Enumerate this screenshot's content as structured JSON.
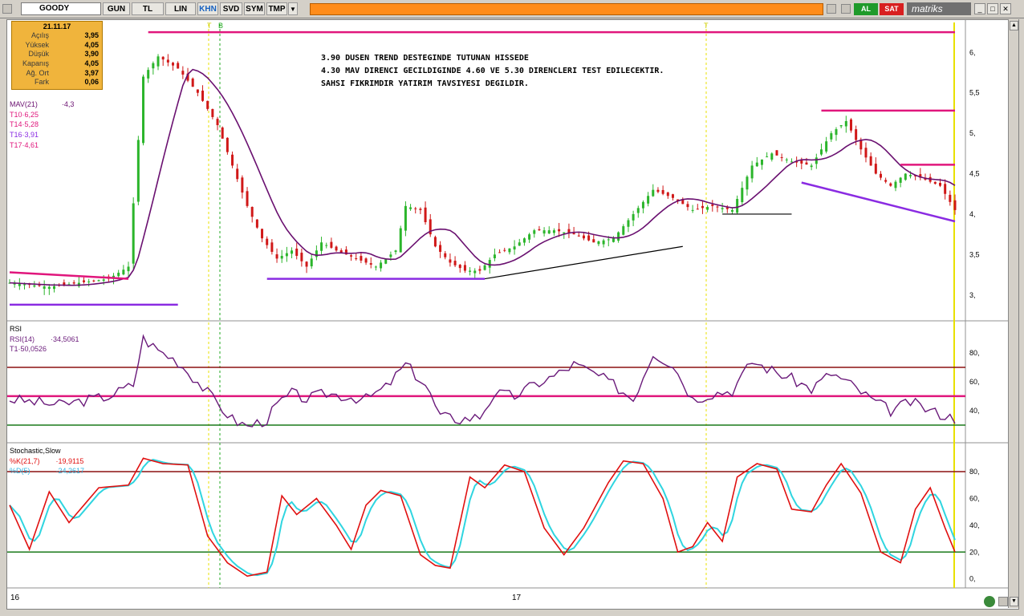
{
  "toolbar": {
    "symbol": "GOODY",
    "buttons": [
      "GUN",
      "TL",
      "LIN",
      "KHN",
      "SVD",
      "SYM",
      "TMP"
    ],
    "active_button": "KHN",
    "buy_label": "AL",
    "sell_label": "SAT",
    "brand": "matriks"
  },
  "info_box": {
    "date": "21.11.17",
    "rows": [
      {
        "label": "Açılış",
        "value": "3,95"
      },
      {
        "label": "Yüksek",
        "value": "4,05"
      },
      {
        "label": "Düşük",
        "value": "3,90"
      },
      {
        "label": "Kapanış",
        "value": "4,05"
      },
      {
        "label": "Ağ. Ort",
        "value": "3,97"
      },
      {
        "label": "Fark",
        "value": "0,06"
      }
    ]
  },
  "price_legend": {
    "mav": "MAV(21)",
    "mav_value": "·4,3",
    "t10": "T10·6,25",
    "t14": "T14·5,28",
    "t16": "T16·3,91",
    "t17": "T17·4,61"
  },
  "annotations": [
    "3.90 DUSEN TREND DESTEGINDE TUTUNAN HISSEDE",
    "4.30 MAV DIRENCI GECILDIGINDE 4.60 VE 5.30 DIRENCLERI TEST EDILECEKTIR.",
    "SAHSI FIKRIMDIR YATIRIM TAVSIYESI DEGILDIR."
  ],
  "markers": {
    "t1": "T",
    "b": "B",
    "t2": "T"
  },
  "rsi_legend": {
    "title": "RSI",
    "line1": "RSI(14)",
    "line1_value": "·34,5061",
    "line2": "T1·50,0526"
  },
  "stoch_legend": {
    "title": "Stochastic,Slow",
    "k": "%K(21,7)",
    "k_value": "·19,9115",
    "d": "%D(5)",
    "d_value": "·24,2617"
  },
  "x_labels": [
    "16",
    "17"
  ],
  "colors": {
    "up": "#2bb52b",
    "down": "#d01818",
    "mav": "#6a1070",
    "trend_pink": "#e0167c",
    "trend_purple": "#8a2be2",
    "rsi": "#6a1a7a",
    "k": "#e01010",
    "d": "#2fd5e0",
    "hi_band": "#8b1010",
    "lo_band": "#1a7a1a"
  },
  "chart_data": [
    {
      "type": "candlestick",
      "title": "GOODY",
      "ylim": [
        2.7,
        6.35
      ],
      "yticks": [
        "6,",
        "5,5",
        "5,",
        "4,5",
        "4,",
        "3,5",
        "3,"
      ],
      "ytick_values": [
        6,
        5.5,
        5,
        4.5,
        4,
        3.5,
        3
      ],
      "anchors": [
        [
          0,
          3.15
        ],
        [
          8,
          3.1
        ],
        [
          14,
          3.15
        ],
        [
          20,
          3.2
        ],
        [
          24,
          3.35
        ],
        [
          27,
          5.7
        ],
        [
          30,
          5.95
        ],
        [
          34,
          5.8
        ],
        [
          38,
          5.5
        ],
        [
          42,
          5.1
        ],
        [
          45,
          4.6
        ],
        [
          48,
          4.1
        ],
        [
          51,
          3.7
        ],
        [
          54,
          3.45
        ],
        [
          57,
          3.55
        ],
        [
          60,
          3.35
        ],
        [
          63,
          3.65
        ],
        [
          66,
          3.55
        ],
        [
          70,
          3.45
        ],
        [
          74,
          3.35
        ],
        [
          78,
          3.55
        ],
        [
          80,
          4.1
        ],
        [
          83,
          4.05
        ],
        [
          86,
          3.6
        ],
        [
          89,
          3.4
        ],
        [
          92,
          3.3
        ],
        [
          95,
          3.3
        ],
        [
          98,
          3.5
        ],
        [
          102,
          3.6
        ],
        [
          106,
          3.8
        ],
        [
          110,
          3.8
        ],
        [
          114,
          3.75
        ],
        [
          118,
          3.65
        ],
        [
          122,
          3.7
        ],
        [
          126,
          4.0
        ],
        [
          130,
          4.3
        ],
        [
          134,
          4.2
        ],
        [
          138,
          4.05
        ],
        [
          142,
          4.1
        ],
        [
          146,
          4.05
        ],
        [
          150,
          4.6
        ],
        [
          154,
          4.75
        ],
        [
          158,
          4.65
        ],
        [
          162,
          4.6
        ],
        [
          166,
          5.0
        ],
        [
          169,
          5.15
        ],
        [
          172,
          4.8
        ],
        [
          175,
          4.5
        ],
        [
          178,
          4.35
        ],
        [
          181,
          4.5
        ],
        [
          184,
          4.45
        ],
        [
          188,
          4.35
        ],
        [
          191,
          4.05
        ]
      ],
      "ma_name": "MAV(21)",
      "ma_value": 4.3,
      "levels": {
        "T10": 6.25,
        "T14": 5.28,
        "T16": 3.91,
        "T17": 4.61
      }
    },
    {
      "type": "line",
      "title": "RSI",
      "series": [
        {
          "name": "RSI(14)",
          "last": 34.5061
        }
      ],
      "reference": 50.0526,
      "bands": [
        70,
        30
      ],
      "ylim": [
        20,
        100
      ],
      "yticks": [
        80,
        60,
        40
      ],
      "anchors": [
        [
          0,
          48
        ],
        [
          10,
          44
        ],
        [
          20,
          50
        ],
        [
          25,
          58
        ],
        [
          27,
          90
        ],
        [
          30,
          82
        ],
        [
          34,
          74
        ],
        [
          38,
          60
        ],
        [
          42,
          45
        ],
        [
          45,
          34
        ],
        [
          48,
          29
        ],
        [
          52,
          34
        ],
        [
          54,
          44
        ],
        [
          57,
          52
        ],
        [
          60,
          48
        ],
        [
          64,
          52
        ],
        [
          68,
          50
        ],
        [
          72,
          48
        ],
        [
          76,
          56
        ],
        [
          80,
          72
        ],
        [
          84,
          58
        ],
        [
          87,
          36
        ],
        [
          91,
          34
        ],
        [
          95,
          36
        ],
        [
          98,
          52
        ],
        [
          102,
          50
        ],
        [
          106,
          58
        ],
        [
          110,
          64
        ],
        [
          114,
          72
        ],
        [
          118,
          66
        ],
        [
          122,
          58
        ],
        [
          126,
          48
        ],
        [
          130,
          80
        ],
        [
          134,
          72
        ],
        [
          138,
          48
        ],
        [
          142,
          52
        ],
        [
          146,
          54
        ],
        [
          150,
          74
        ],
        [
          154,
          68
        ],
        [
          158,
          62
        ],
        [
          162,
          55
        ],
        [
          166,
          66
        ],
        [
          170,
          58
        ],
        [
          174,
          48
        ],
        [
          178,
          40
        ],
        [
          182,
          46
        ],
        [
          186,
          40
        ],
        [
          191,
          34.5
        ]
      ]
    },
    {
      "type": "line",
      "title": "Stochastic,Slow",
      "series": [
        {
          "name": "%K(21,7)",
          "last": 19.9115
        },
        {
          "name": "%D(5)",
          "last": 24.2617
        }
      ],
      "bands": [
        80,
        20
      ],
      "ylim": [
        -5,
        98
      ],
      "yticks": [
        80,
        60,
        40,
        20,
        0
      ],
      "anchors": [
        [
          0,
          55
        ],
        [
          4,
          22
        ],
        [
          8,
          65
        ],
        [
          12,
          42
        ],
        [
          18,
          68
        ],
        [
          24,
          70
        ],
        [
          27,
          90
        ],
        [
          31,
          86
        ],
        [
          36,
          85
        ],
        [
          40,
          32
        ],
        [
          44,
          12
        ],
        [
          48,
          2
        ],
        [
          52,
          5
        ],
        [
          55,
          62
        ],
        [
          58,
          48
        ],
        [
          62,
          60
        ],
        [
          66,
          40
        ],
        [
          69,
          22
        ],
        [
          72,
          55
        ],
        [
          75,
          66
        ],
        [
          79,
          62
        ],
        [
          83,
          18
        ],
        [
          86,
          10
        ],
        [
          89,
          8
        ],
        [
          93,
          76
        ],
        [
          96,
          68
        ],
        [
          100,
          85
        ],
        [
          104,
          80
        ],
        [
          108,
          38
        ],
        [
          112,
          18
        ],
        [
          116,
          38
        ],
        [
          121,
          72
        ],
        [
          124,
          88
        ],
        [
          128,
          86
        ],
        [
          132,
          60
        ],
        [
          135,
          20
        ],
        [
          138,
          24
        ],
        [
          141,
          42
        ],
        [
          144,
          28
        ],
        [
          147,
          76
        ],
        [
          151,
          86
        ],
        [
          155,
          82
        ],
        [
          158,
          52
        ],
        [
          162,
          50
        ],
        [
          165,
          70
        ],
        [
          168,
          86
        ],
        [
          172,
          64
        ],
        [
          176,
          20
        ],
        [
          180,
          12
        ],
        [
          183,
          52
        ],
        [
          186,
          68
        ],
        [
          189,
          38
        ],
        [
          191,
          20
        ]
      ]
    }
  ]
}
